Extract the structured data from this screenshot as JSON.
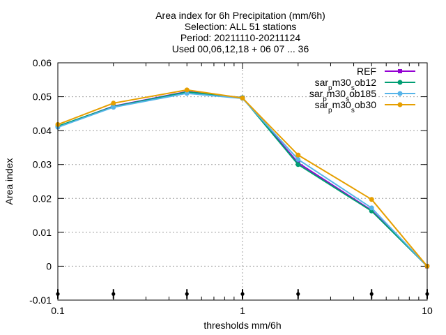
{
  "title_lines": [
    "Area index  for 6h Precipitation (mm/6h)",
    "Selection: ALL      51 stations",
    "Period: 20211110-20211124",
    "Used 00,06,12,18 + 06 07 ... 36"
  ],
  "chart_data": {
    "type": "line",
    "xlabel": "thresholds mm/6h",
    "ylabel": "Area index",
    "x_scale": "log",
    "xlim": [
      0.1,
      10
    ],
    "ylim": [
      -0.01,
      0.06
    ],
    "grid": true,
    "legend_position": "top-right",
    "x_ticks": [
      {
        "value": 0.1,
        "label": "0.1"
      },
      {
        "value": 1,
        "label": "1"
      },
      {
        "value": 10,
        "label": "10"
      }
    ],
    "y_ticks": [
      {
        "value": -0.01,
        "label": "-0.01"
      },
      {
        "value": 0,
        "label": "0"
      },
      {
        "value": 0.01,
        "label": "0.01"
      },
      {
        "value": 0.02,
        "label": "0.02"
      },
      {
        "value": 0.03,
        "label": "0.03"
      },
      {
        "value": 0.04,
        "label": "0.04"
      },
      {
        "value": 0.05,
        "label": "0.05"
      },
      {
        "value": 0.06,
        "label": "0.06"
      }
    ],
    "bottom_markers_x": [
      0.1,
      0.2,
      0.5,
      1,
      2,
      5,
      10
    ],
    "x": [
      0.1,
      0.2,
      0.5,
      1,
      2,
      5,
      10
    ],
    "series": [
      {
        "name": "REF",
        "color": "#9400d3",
        "marker": "square",
        "values": [
          0.0412,
          0.0472,
          0.0515,
          0.0497,
          0.0305,
          0.0165,
          0.0
        ]
      },
      {
        "name": "sar_pm30_sob12",
        "color": "#009e73",
        "marker": "circle",
        "values": [
          0.0413,
          0.0471,
          0.0514,
          0.0497,
          0.03,
          0.0163,
          0.0
        ]
      },
      {
        "name": "sar_pm30_sob185",
        "color": "#56b4e9",
        "marker": "circle",
        "values": [
          0.041,
          0.0469,
          0.051,
          0.0495,
          0.0315,
          0.0172,
          0.0
        ]
      },
      {
        "name": "sar_pm30_sob30",
        "color": "#e69f00",
        "marker": "circle",
        "values": [
          0.0418,
          0.0481,
          0.052,
          0.0496,
          0.0328,
          0.0197,
          0.0
        ]
      }
    ]
  }
}
